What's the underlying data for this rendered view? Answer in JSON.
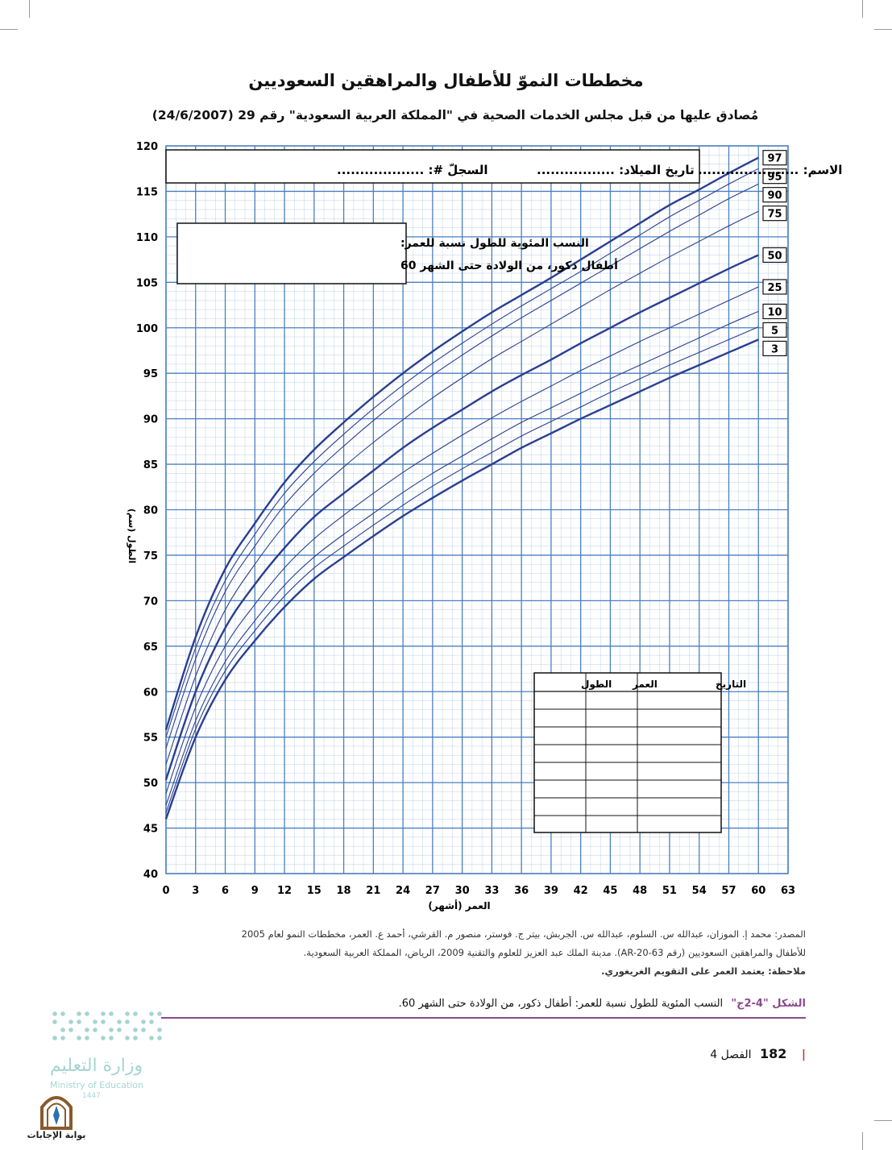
{
  "page": {
    "title": "مخططات النموّ للأطفال والمراهقين السعوديين",
    "subtitle": "مُصادق عليها من قبل مجلس الخدمات الصحية في \"المملكة العربية السعودية\" رقم 29 (24/6/2007)"
  },
  "chart_data": {
    "type": "line",
    "xlabel": "العمر (أشهر)",
    "ylabel": "(الطول (سم",
    "xlim": [
      0,
      63
    ],
    "ylim": [
      40,
      120
    ],
    "x_ticks": [
      0,
      3,
      6,
      9,
      12,
      15,
      18,
      21,
      24,
      27,
      30,
      33,
      36,
      39,
      42,
      45,
      48,
      51,
      54,
      57,
      60,
      63
    ],
    "y_ticks": [
      40,
      45,
      50,
      55,
      60,
      65,
      70,
      75,
      80,
      85,
      90,
      95,
      100,
      105,
      110,
      115,
      120
    ],
    "grid": true,
    "x": [
      0,
      3,
      6,
      9,
      12,
      15,
      18,
      21,
      24,
      27,
      30,
      33,
      36,
      39,
      42,
      45,
      48,
      51,
      54,
      57,
      60
    ],
    "series": [
      {
        "name": "97",
        "values": [
          55.8,
          66.0,
          73.5,
          78.5,
          83.0,
          86.6,
          89.6,
          92.4,
          95.0,
          97.4,
          99.6,
          101.7,
          103.6,
          105.5,
          107.5,
          109.5,
          111.5,
          113.5,
          115.2,
          117.0,
          118.7
        ]
      },
      {
        "name": "95",
        "values": [
          55.0,
          64.8,
          72.2,
          77.3,
          81.8,
          85.3,
          88.3,
          91.1,
          93.7,
          96.1,
          98.3,
          100.4,
          102.4,
          104.3,
          106.2,
          108.2,
          110.2,
          112.2,
          114.0,
          115.8,
          117.5
        ]
      },
      {
        "name": "90",
        "values": [
          53.8,
          63.6,
          71.0,
          76.0,
          80.5,
          84.0,
          87.0,
          89.8,
          92.4,
          94.8,
          97.0,
          99.1,
          101.1,
          103.0,
          104.9,
          106.8,
          108.7,
          110.6,
          112.4,
          114.2,
          115.8
        ]
      },
      {
        "name": "75",
        "values": [
          52.0,
          61.7,
          69.0,
          74.0,
          78.3,
          81.8,
          84.7,
          87.4,
          89.9,
          92.3,
          94.5,
          96.6,
          98.5,
          100.4,
          102.3,
          104.2,
          106.0,
          107.8,
          109.5,
          111.2,
          112.8
        ]
      },
      {
        "name": "50",
        "values": [
          50.3,
          60.0,
          67.0,
          71.8,
          75.8,
          79.2,
          81.8,
          84.3,
          86.8,
          89.0,
          91.0,
          93.0,
          94.8,
          96.5,
          98.3,
          100.0,
          101.7,
          103.3,
          104.9,
          106.5,
          108.0
        ]
      },
      {
        "name": "25",
        "values": [
          48.8,
          58.3,
          65.0,
          69.6,
          73.6,
          76.8,
          79.4,
          81.8,
          84.1,
          86.2,
          88.2,
          90.1,
          91.9,
          93.6,
          95.3,
          96.9,
          98.5,
          100.0,
          101.5,
          103.0,
          104.5
        ]
      },
      {
        "name": "10",
        "values": [
          47.5,
          56.8,
          63.3,
          67.8,
          71.7,
          74.8,
          77.3,
          79.6,
          81.9,
          84.0,
          85.9,
          87.8,
          89.6,
          91.2,
          92.8,
          94.4,
          95.9,
          97.4,
          98.9,
          100.4,
          101.8
        ]
      },
      {
        "name": "5",
        "values": [
          46.7,
          55.9,
          62.3,
          66.7,
          70.5,
          73.6,
          76.0,
          78.3,
          80.5,
          82.6,
          84.5,
          86.3,
          88.1,
          89.7,
          91.3,
          92.9,
          94.4,
          95.9,
          97.3,
          98.7,
          100.1
        ]
      },
      {
        "name": "3",
        "values": [
          46.0,
          55.0,
          61.3,
          65.6,
          69.3,
          72.4,
          74.8,
          77.1,
          79.3,
          81.3,
          83.2,
          85.0,
          86.8,
          88.4,
          90.0,
          91.5,
          93.0,
          94.5,
          95.9,
          97.3,
          98.7
        ]
      }
    ]
  },
  "form": {
    "name_label": "الاسم: ......................",
    "dob_label": "تاريخ الميلاد: .................",
    "record_label": "السجلّ #: ..................."
  },
  "legend_box": {
    "line1": "النسب المئوية للطول نسبة للعمر:",
    "line2": "أطفال ذكور، من الولادة حتى الشهر 60"
  },
  "record_table": {
    "headers": [
      "التاريخ",
      "العمر",
      "الطول"
    ]
  },
  "source": {
    "line1": "المصدر: محمد إ. الموزان، عبدالله س. السلوم، عبدالله س. الجربش، بيتر ج. فوستر، منصور م. القرشي، أحمد ع. العمر، مخططات النمو لعام 2005",
    "line2": "للأطفال والمراهقين السعوديين (رقم AR-20-63). مدينة الملك عبد العزيز للعلوم والتقنية 2009، الرياض، المملكة العربية السعودية.",
    "line3": "ملاحظة: يعتمد العمر على التقويم الغريغوري."
  },
  "caption": {
    "figure": "الشكل \"4-2ج\"",
    "text": "النسب المئوية للطول نسبة للعمر: أطفال ذكور، من الولادة حتى الشهر 60."
  },
  "footer": {
    "page_number": "182",
    "chapter": "الفصل 4"
  },
  "ministry": {
    "arabic": "وزارة التعليم",
    "english": "Ministry of Education",
    "year": "1447"
  },
  "portal": {
    "label": "بوابة الإجابات"
  },
  "colors": {
    "grid": "#4a7fc1",
    "curve": "#2a3f8f",
    "caption": "#8a4b8c"
  }
}
